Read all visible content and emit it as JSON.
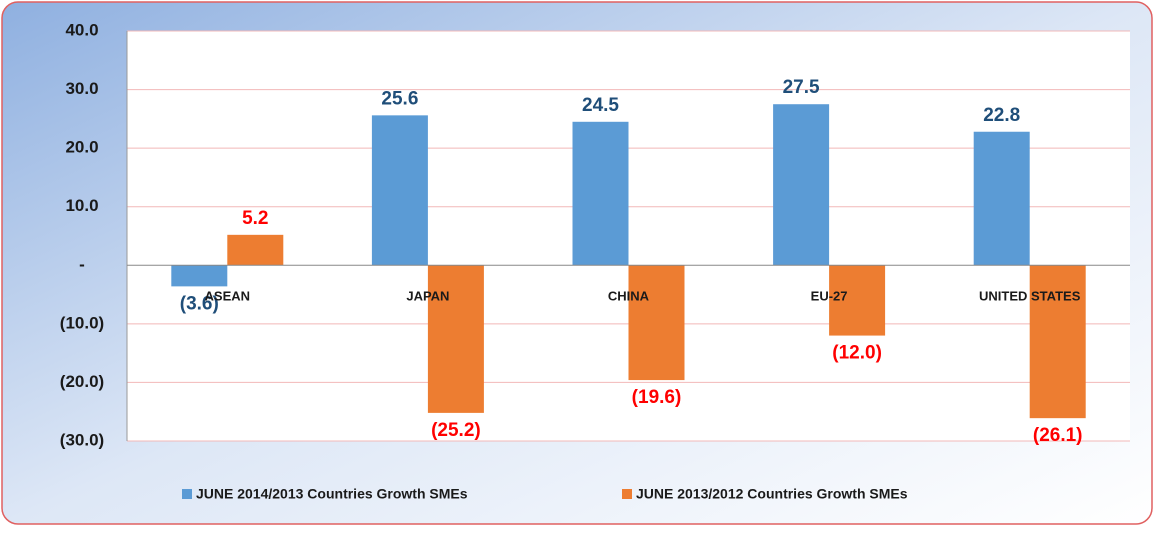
{
  "chart_data": {
    "type": "bar",
    "categories": [
      "ASEAN",
      "JAPAN",
      "CHINA",
      "EU-27",
      "UNITED STATES"
    ],
    "series": [
      {
        "name": "JUNE 2014/2013 Countries Growth SMEs",
        "color": "#5b9bd5",
        "label_color": "#1f4e79",
        "values": [
          -3.6,
          25.6,
          24.5,
          27.5,
          22.8
        ],
        "value_labels": [
          "(3.6)",
          "25.6",
          "24.5",
          "27.5",
          "22.8"
        ]
      },
      {
        "name": "JUNE 2013/2012 Countries Growth SMEs",
        "color": "#ed7d31",
        "label_color": "#ff0000",
        "values": [
          5.2,
          -25.2,
          -19.6,
          -12.0,
          -26.1
        ],
        "value_labels": [
          "5.2",
          "(25.2)",
          "(19.6)",
          "(12.0)",
          "(26.1)"
        ]
      }
    ],
    "ylim": [
      -30,
      40
    ],
    "yticks": [
      {
        "value": -30,
        "label": "(30.0)"
      },
      {
        "value": -20,
        "label": "(20.0)"
      },
      {
        "value": -10,
        "label": "(10.0)"
      },
      {
        "value": 0,
        "label": "-"
      },
      {
        "value": 10,
        "label": "10.0"
      },
      {
        "value": 20,
        "label": "20.0"
      },
      {
        "value": 30,
        "label": "30.0"
      },
      {
        "value": 40,
        "label": "40.0"
      }
    ],
    "grid": true,
    "legend": "bottom"
  }
}
